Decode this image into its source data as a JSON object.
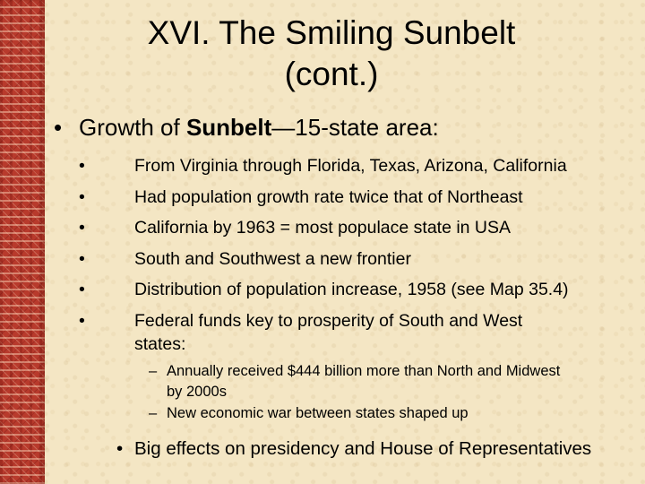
{
  "slide": {
    "title_line1": "XVI. The Smiling Sunbelt",
    "title_line2": "(cont.)",
    "main_bullet": {
      "prefix": "Growth of ",
      "bold": "Sunbelt",
      "suffix": "—15-state area:"
    },
    "sub_bullets": [
      "From Virginia through Florida, Texas, Arizona, California",
      "Had population growth rate twice that of Northeast",
      "California by 1963 = most populace state in USA",
      "South and Southwest a new frontier",
      "Distribution of population increase, 1958 (see Map 35.4)"
    ],
    "sub_bullet_last_line1": "Federal funds key to prosperity of South and West",
    "sub_bullet_last_line2": "states:",
    "subsub_bullets": [
      {
        "line1": "Annually received $444 billion more than North and Midwest",
        "line2": "by 2000s"
      },
      {
        "line1": "New economic war between states shaped up",
        "line2": ""
      }
    ],
    "last_bullet": "Big effects on presidency and House of Representatives",
    "bullet_glyph": "•",
    "dash_glyph": "–"
  },
  "colors": {
    "background": "#f4e6c4",
    "border": "#b83a2c",
    "text": "#000000"
  }
}
